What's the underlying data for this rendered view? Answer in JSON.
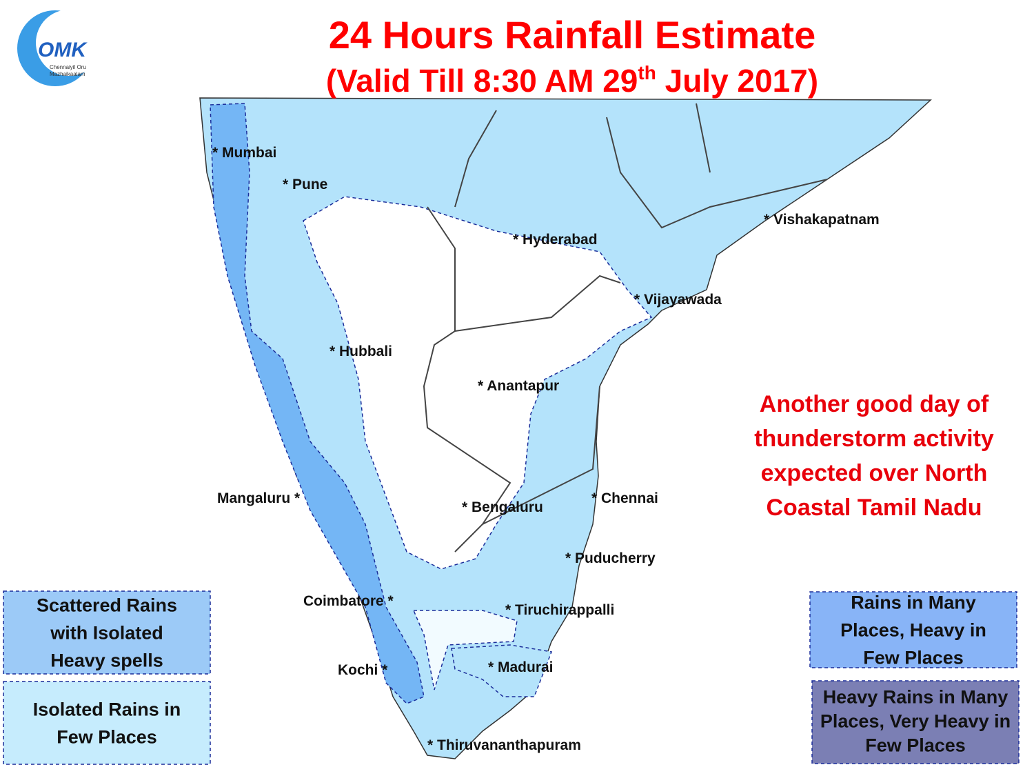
{
  "logo": {
    "mark": "OMK",
    "caption": [
      "Chennaiyil Oru",
      "Mazhaikaalam"
    ]
  },
  "header": {
    "title": "24 Hours Rainfall Estimate",
    "subtitle": {
      "before": "(Valid Till 8:30 AM 29",
      "sup": "th",
      "after": " July 2017)"
    }
  },
  "map": {
    "cities": [
      "* Mumbai",
      "* Pune",
      "* Hyderabad",
      "* Vishakapatnam",
      "* Vijayawada",
      "* Hubbali",
      "* Anantapur",
      "Mangaluru *",
      "* Bengaluru",
      "* Chennai",
      "* Puducherry",
      "Coimbatore *",
      "* Tiruchirappalli",
      "Kochi *",
      "* Madurai",
      "* Thiruvananthapuram"
    ]
  },
  "annotation": [
    "Another good day of",
    "thunderstorm activity",
    "expected over North",
    "Coastal Tamil Nadu"
  ],
  "legend": [
    {
      "lines": [
        "Scattered Rains",
        "with Isolated",
        "Heavy spells"
      ]
    },
    {
      "lines": [
        "Isolated Rains in",
        "Few  Places"
      ]
    },
    {
      "lines": [
        "Rains in Many",
        "Places, Heavy in",
        "Few Places"
      ]
    },
    {
      "lines": [
        "Heavy Rains in Many",
        "Places, Very Heavy in",
        "Few Places"
      ]
    }
  ]
}
